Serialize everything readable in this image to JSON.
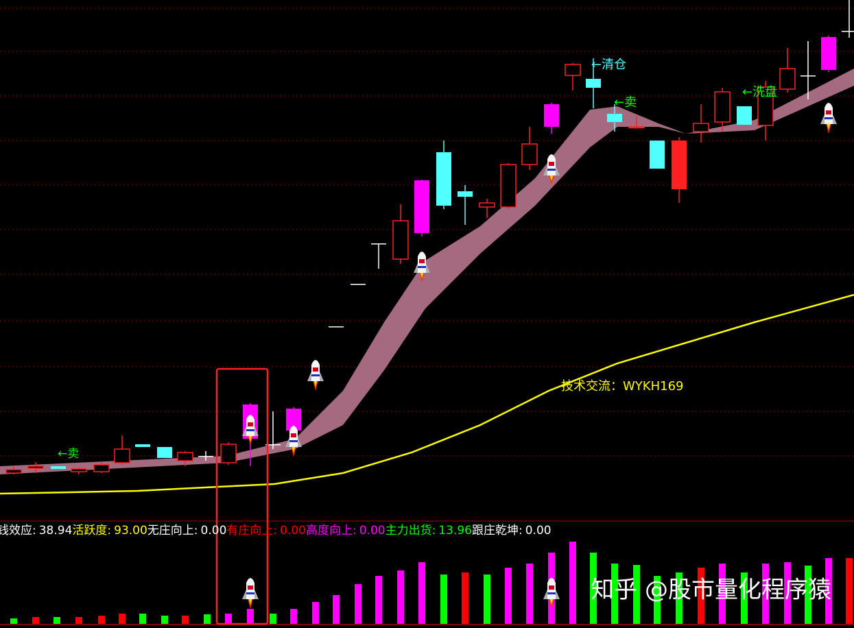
{
  "chart_data": {
    "type": "candlestick",
    "ylim": [
      0,
      760
    ],
    "xlim": [
      0,
      1245
    ],
    "grid": true,
    "yticks": [
      95,
      160,
      225,
      292,
      360,
      425,
      490,
      555,
      620,
      685,
      748
    ],
    "candles": {
      "x": [
        20,
        52,
        85,
        115,
        148,
        178,
        208,
        240,
        270,
        300,
        333,
        365,
        398,
        428,
        490,
        522,
        552,
        584,
        615,
        647,
        678,
        710,
        741,
        772,
        804,
        835,
        865,
        896,
        928,
        958,
        990,
        1022,
        1053,
        1085,
        1116,
        1148,
        1178,
        1208,
        1238
      ],
      "open": [
        70,
        77,
        80,
        72,
        72,
        85,
        112,
        108,
        88,
        95,
        85,
        120,
        112,
        132,
        284,
        346,
        405,
        382,
        420,
        538,
        481,
        458,
        458,
        520,
        575,
        650,
        645,
        594,
        575,
        555,
        555,
        568,
        582,
        605,
        577,
        630,
        650,
        658,
        715
      ],
      "close": [
        75,
        80,
        76,
        76,
        82,
        105,
        108,
        92,
        100,
        95,
        112,
        170,
        112,
        164,
        284,
        346,
        405,
        438,
        497,
        460,
        473,
        464,
        520,
        550,
        608,
        666,
        632,
        582,
        575,
        514,
        484,
        580,
        626,
        578,
        633,
        660,
        650,
        706,
        715
      ],
      "high": [
        80,
        86,
        80,
        78,
        85,
        125,
        112,
        108,
        102,
        102,
        115,
        172,
        160,
        166,
        284,
        346,
        405,
        462,
        498,
        555,
        490,
        470,
        522,
        575,
        610,
        668,
        675,
        608,
        590,
        555,
        560,
        608,
        632,
        605,
        642,
        690,
        700,
        708,
        760
      ],
      "low": [
        68,
        70,
        76,
        68,
        70,
        82,
        108,
        92,
        80,
        88,
        82,
        80,
        105,
        120,
        284,
        346,
        368,
        375,
        415,
        455,
        432,
        442,
        455,
        512,
        565,
        628,
        602,
        568,
        572,
        514,
        464,
        552,
        568,
        578,
        555,
        625,
        615,
        655,
        705
      ],
      "colors": [
        "#ff2020",
        "#ff2020",
        "#50ffff",
        "#ff2020",
        "#ff2020",
        "#ff2020",
        "#50ffff",
        "#50ffff",
        "#ff2020",
        "#ffffff",
        "#ff2020",
        "#ff00ff",
        "#ffffff",
        "#ff00ff",
        "#ffffff",
        "#ffffff",
        "#ffffff",
        "#ff2020",
        "#ff00ff",
        "#50ffff",
        "#50ffff",
        "#ff2020",
        "#ff2020",
        "#ff2020",
        "#ff00ff",
        "#ff2020",
        "#50ffff",
        "#50ffff",
        "#ff2020",
        "#50ffff",
        "#ff2020",
        "#ff2020",
        "#ff2020",
        "#50ffff",
        "#ff2020",
        "#ff2020",
        "#ffffff",
        "#ff00ff",
        "#ffffff"
      ],
      "hollow": [
        true,
        true,
        false,
        true,
        true,
        true,
        false,
        false,
        true,
        false,
        true,
        false,
        false,
        false,
        false,
        false,
        false,
        true,
        false,
        false,
        false,
        true,
        true,
        true,
        false,
        true,
        false,
        false,
        true,
        false,
        false,
        true,
        true,
        false,
        true,
        true,
        false,
        false,
        false
      ]
    },
    "band": {
      "color": "#a46a80",
      "x": [
        0,
        330,
        430,
        500,
        560,
        620,
        700,
        780,
        860,
        900,
        960,
        1000,
        1100,
        1245
      ],
      "upper": [
        80,
        95,
        120,
        190,
        290,
        380,
        430,
        500,
        600,
        605,
        580,
        565,
        585,
        660
      ],
      "lower": [
        68,
        85,
        105,
        140,
        220,
        310,
        390,
        460,
        545,
        575,
        575,
        565,
        570,
        635
      ]
    },
    "ma": {
      "color": "#ffff00",
      "x": [
        0,
        200,
        400,
        500,
        600,
        700,
        800,
        900,
        1000,
        1100,
        1245
      ],
      "values": [
        40,
        44,
        54,
        70,
        100,
        140,
        190,
        230,
        260,
        290,
        330
      ]
    },
    "indicator": {
      "ylim": [
        0,
        150
      ],
      "x": [
        20,
        52,
        83,
        115,
        148,
        178,
        208,
        240,
        270,
        302,
        333,
        365,
        398,
        428,
        460,
        490,
        522,
        552,
        584,
        615,
        647,
        678,
        710,
        741,
        772,
        804,
        835,
        865,
        896,
        928,
        958,
        990,
        1022,
        1053,
        1085,
        1116,
        1148,
        1178,
        1208,
        1238
      ],
      "values": [
        8,
        10,
        10,
        10,
        12,
        15,
        15,
        12,
        12,
        14,
        15,
        22,
        15,
        22,
        32,
        42,
        58,
        70,
        78,
        90,
        72,
        75,
        72,
        82,
        88,
        104,
        120,
        104,
        88,
        86,
        70,
        75,
        82,
        88,
        75,
        88,
        90,
        85,
        96,
        96
      ],
      "colors": [
        "#00ff00",
        "#ff0000",
        "#00ff00",
        "#ff0000",
        "#ff0000",
        "#ff0000",
        "#00ff00",
        "#00ff00",
        "#ff0000",
        "#00ff00",
        "#ff00ff",
        "#ff00ff",
        "#00ff00",
        "#ff00ff",
        "#ff00ff",
        "#ff00ff",
        "#ff00ff",
        "#ff00ff",
        "#ff00ff",
        "#ff00ff",
        "#00ff00",
        "#ff0000",
        "#00ff00",
        "#ff00ff",
        "#ff00ff",
        "#ff00ff",
        "#ff00ff",
        "#00ff00",
        "#00ff00",
        "#00ff00",
        "#00ff00",
        "#00ff00",
        "#ff0000",
        "#ff00ff",
        "#00ff00",
        "#ff00ff",
        "#ff00ff",
        "#00ff00",
        "#ff00ff",
        "#ff0000"
      ],
      "items": [
        {
          "name": "钱效应:",
          "value": 38.94,
          "color": "#ffffff"
        },
        {
          "name": "活跃度:",
          "value": 93,
          "value_label": "93.00",
          "color": "#ffff00"
        },
        {
          "name": "无庄向上:",
          "value": 0,
          "value_label": "0.00",
          "color": "#ffffff"
        },
        {
          "name": "有庄向上:",
          "value": 0,
          "value_label": "0.00",
          "color": "#ff0000"
        },
        {
          "name": "高度向上:",
          "value": 0,
          "value_label": "0.00",
          "color": "#ff00ff"
        },
        {
          "name": "主力出货:",
          "value": 13.96,
          "color": "#00ff00"
        },
        {
          "name": "跟庄乾坤:",
          "value": 0,
          "value_label": "0.00",
          "color": "#ffffff"
        }
      ]
    },
    "annotations": [
      {
        "text": "←卖",
        "color": "#00ff00"
      },
      {
        "text": "←清仓",
        "color": "#50ffff"
      },
      {
        "text": "←卖",
        "color": "#00ff00"
      },
      {
        "text": "←洗盘",
        "color": "#00ff00"
      },
      {
        "text": "技术交流：WYKH169",
        "color": "#ffff00"
      }
    ],
    "watermark": "知乎 @股市量化程序猿"
  }
}
